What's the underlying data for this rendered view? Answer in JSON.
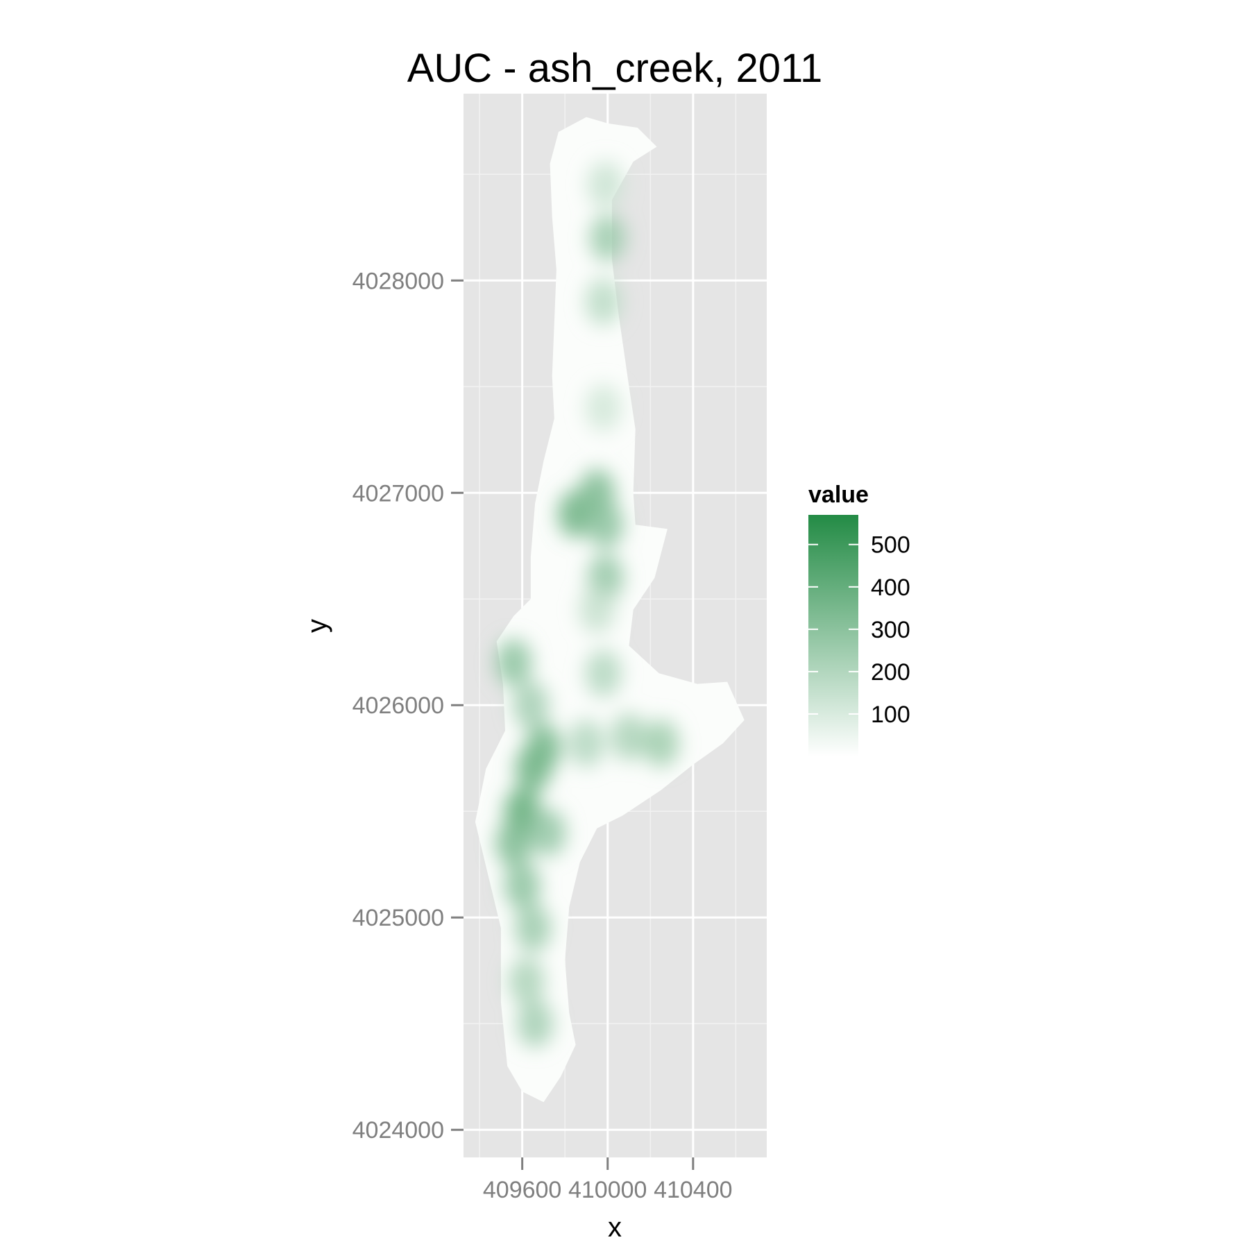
{
  "chart_data": {
    "type": "heatmap",
    "title": "AUC - ash_creek, 2011",
    "xlabel": "x",
    "ylabel": "y",
    "xlim": [
      409325,
      410745
    ],
    "ylim": [
      4023870,
      4028880
    ],
    "x_ticks": [
      {
        "value": 409600,
        "label": "409600"
      },
      {
        "value": 410000,
        "label": "410000"
      },
      {
        "value": 410400,
        "label": "410400"
      }
    ],
    "y_ticks": [
      {
        "value": 4024000,
        "label": "4024000"
      },
      {
        "value": 4025000,
        "label": "4025000"
      },
      {
        "value": 4026000,
        "label": "4026000"
      },
      {
        "value": 4027000,
        "label": "4027000"
      },
      {
        "value": 4028000,
        "label": "4028000"
      }
    ],
    "x_minor": [
      409400,
      409800,
      410200,
      410600
    ],
    "y_minor": [
      4024500,
      4025500,
      4026500,
      4027500,
      4028500
    ],
    "grid": true,
    "panel_background": "#e5e5e5",
    "legend": {
      "title": "value",
      "position": "right",
      "low_color": "#ffffff",
      "high_color": "#238b45",
      "range": [
        0,
        570
      ],
      "breaks": [
        100,
        200,
        300,
        400,
        500
      ]
    },
    "region_outline": [
      [
        409770,
        4028700
      ],
      [
        409900,
        4028770
      ],
      [
        410000,
        4028740
      ],
      [
        410140,
        4028720
      ],
      [
        410230,
        4028630
      ],
      [
        410120,
        4028560
      ],
      [
        410020,
        4028380
      ],
      [
        410020,
        4028100
      ],
      [
        410050,
        4027850
      ],
      [
        410100,
        4027500
      ],
      [
        410130,
        4027300
      ],
      [
        410120,
        4027000
      ],
      [
        410130,
        4026850
      ],
      [
        410280,
        4026830
      ],
      [
        410220,
        4026600
      ],
      [
        410120,
        4026450
      ],
      [
        410100,
        4026280
      ],
      [
        410240,
        4026150
      ],
      [
        410420,
        4026100
      ],
      [
        410560,
        4026110
      ],
      [
        410640,
        4025930
      ],
      [
        410540,
        4025820
      ],
      [
        410400,
        4025720
      ],
      [
        410250,
        4025600
      ],
      [
        410070,
        4025480
      ],
      [
        409950,
        4025420
      ],
      [
        409870,
        4025260
      ],
      [
        409820,
        4025050
      ],
      [
        409800,
        4024800
      ],
      [
        409820,
        4024550
      ],
      [
        409850,
        4024400
      ],
      [
        409780,
        4024250
      ],
      [
        409700,
        4024130
      ],
      [
        409600,
        4024180
      ],
      [
        409530,
        4024300
      ],
      [
        409500,
        4024600
      ],
      [
        409500,
        4024950
      ],
      [
        409440,
        4025200
      ],
      [
        409380,
        4025450
      ],
      [
        409430,
        4025700
      ],
      [
        409520,
        4025880
      ],
      [
        409510,
        4026100
      ],
      [
        409480,
        4026300
      ],
      [
        409560,
        4026420
      ],
      [
        409640,
        4026500
      ],
      [
        409640,
        4026700
      ],
      [
        409660,
        4026950
      ],
      [
        409700,
        4027150
      ],
      [
        409750,
        4027350
      ],
      [
        409740,
        4027550
      ],
      [
        409750,
        4027800
      ],
      [
        409760,
        4028050
      ],
      [
        409740,
        4028300
      ],
      [
        409730,
        4028550
      ]
    ],
    "points": [
      {
        "x": 409600,
        "y": 4025500,
        "value": 420
      },
      {
        "x": 409650,
        "y": 4025700,
        "value": 380
      },
      {
        "x": 409700,
        "y": 4025800,
        "value": 360
      },
      {
        "x": 409560,
        "y": 4025350,
        "value": 340
      },
      {
        "x": 409600,
        "y": 4025150,
        "value": 300
      },
      {
        "x": 409650,
        "y": 4024950,
        "value": 260
      },
      {
        "x": 409620,
        "y": 4024700,
        "value": 220
      },
      {
        "x": 409660,
        "y": 4024500,
        "value": 240
      },
      {
        "x": 409720,
        "y": 4025400,
        "value": 280
      },
      {
        "x": 409560,
        "y": 4026200,
        "value": 300
      },
      {
        "x": 409640,
        "y": 4026000,
        "value": 240
      },
      {
        "x": 409900,
        "y": 4025820,
        "value": 200
      },
      {
        "x": 410100,
        "y": 4025850,
        "value": 220
      },
      {
        "x": 410250,
        "y": 4025820,
        "value": 250
      },
      {
        "x": 409980,
        "y": 4026150,
        "value": 200
      },
      {
        "x": 409850,
        "y": 4026900,
        "value": 380
      },
      {
        "x": 409950,
        "y": 4027000,
        "value": 340
      },
      {
        "x": 409990,
        "y": 4026850,
        "value": 300
      },
      {
        "x": 409990,
        "y": 4026600,
        "value": 280
      },
      {
        "x": 409950,
        "y": 4026450,
        "value": 150
      },
      {
        "x": 409980,
        "y": 4027400,
        "value": 120
      },
      {
        "x": 409980,
        "y": 4027900,
        "value": 180
      },
      {
        "x": 410000,
        "y": 4028200,
        "value": 260
      },
      {
        "x": 409990,
        "y": 4028450,
        "value": 140
      }
    ]
  }
}
